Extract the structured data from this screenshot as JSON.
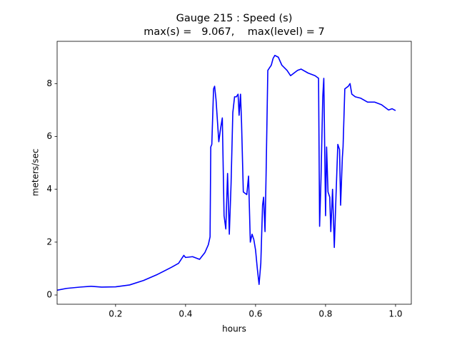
{
  "chart_data": {
    "type": "line",
    "title": "Gauge 215 : Speed (s)",
    "subtitle": "max(s) =   9.067,    max(level) = 7",
    "x_label": "hours",
    "y_label": "meters/sec",
    "color": "#0000ff",
    "x": [
      0.033,
      0.06,
      0.1,
      0.13,
      0.16,
      0.2,
      0.24,
      0.28,
      0.32,
      0.36,
      0.38,
      0.395,
      0.4,
      0.42,
      0.44,
      0.455,
      0.465,
      0.47,
      0.472,
      0.475,
      0.48,
      0.483,
      0.487,
      0.49,
      0.495,
      0.5,
      0.505,
      0.51,
      0.515,
      0.52,
      0.525,
      0.53,
      0.535,
      0.54,
      0.545,
      0.55,
      0.553,
      0.557,
      0.56,
      0.565,
      0.575,
      0.58,
      0.585,
      0.59,
      0.595,
      0.6,
      0.605,
      0.61,
      0.615,
      0.62,
      0.623,
      0.627,
      0.63,
      0.635,
      0.64,
      0.645,
      0.65,
      0.655,
      0.665,
      0.675,
      0.69,
      0.7,
      0.72,
      0.73,
      0.75,
      0.77,
      0.78,
      0.783,
      0.787,
      0.792,
      0.795,
      0.8,
      0.803,
      0.807,
      0.812,
      0.815,
      0.82,
      0.825,
      0.83,
      0.835,
      0.84,
      0.843,
      0.848,
      0.85,
      0.855,
      0.865,
      0.87,
      0.875,
      0.885,
      0.9,
      0.92,
      0.94,
      0.96,
      0.98,
      0.99,
      1.0
    ],
    "values": [
      0.18,
      0.25,
      0.3,
      0.33,
      0.3,
      0.31,
      0.38,
      0.55,
      0.78,
      1.05,
      1.2,
      1.5,
      1.42,
      1.45,
      1.35,
      1.6,
      1.9,
      2.2,
      5.6,
      5.7,
      7.8,
      7.9,
      7.4,
      6.8,
      5.8,
      6.3,
      6.7,
      3.0,
      2.5,
      4.6,
      2.3,
      4.2,
      6.9,
      7.5,
      7.5,
      7.6,
      6.8,
      7.6,
      6.5,
      3.9,
      3.8,
      4.5,
      2.0,
      2.3,
      2.1,
      1.7,
      1.0,
      0.4,
      1.2,
      3.4,
      3.7,
      2.4,
      4.5,
      8.5,
      8.6,
      8.7,
      8.95,
      9.067,
      9.0,
      8.7,
      8.5,
      8.3,
      8.5,
      8.55,
      8.4,
      8.3,
      8.2,
      2.6,
      4.4,
      7.5,
      8.2,
      3.0,
      5.6,
      3.9,
      3.7,
      2.4,
      4.0,
      1.8,
      3.8,
      5.7,
      5.5,
      3.4,
      5.2,
      5.6,
      7.8,
      7.9,
      8.0,
      7.6,
      7.5,
      7.45,
      7.3,
      7.3,
      7.2,
      7.0,
      7.05,
      6.98
    ],
    "xlim": [
      0.033,
      1.045
    ],
    "ylim": [
      -0.35,
      9.6
    ],
    "xticks": [
      0.2,
      0.4,
      0.6,
      0.8,
      {
        "value": 1,
        "label": "1.0"
      }
    ],
    "yticks": [
      0,
      2,
      4,
      6,
      8
    ]
  }
}
